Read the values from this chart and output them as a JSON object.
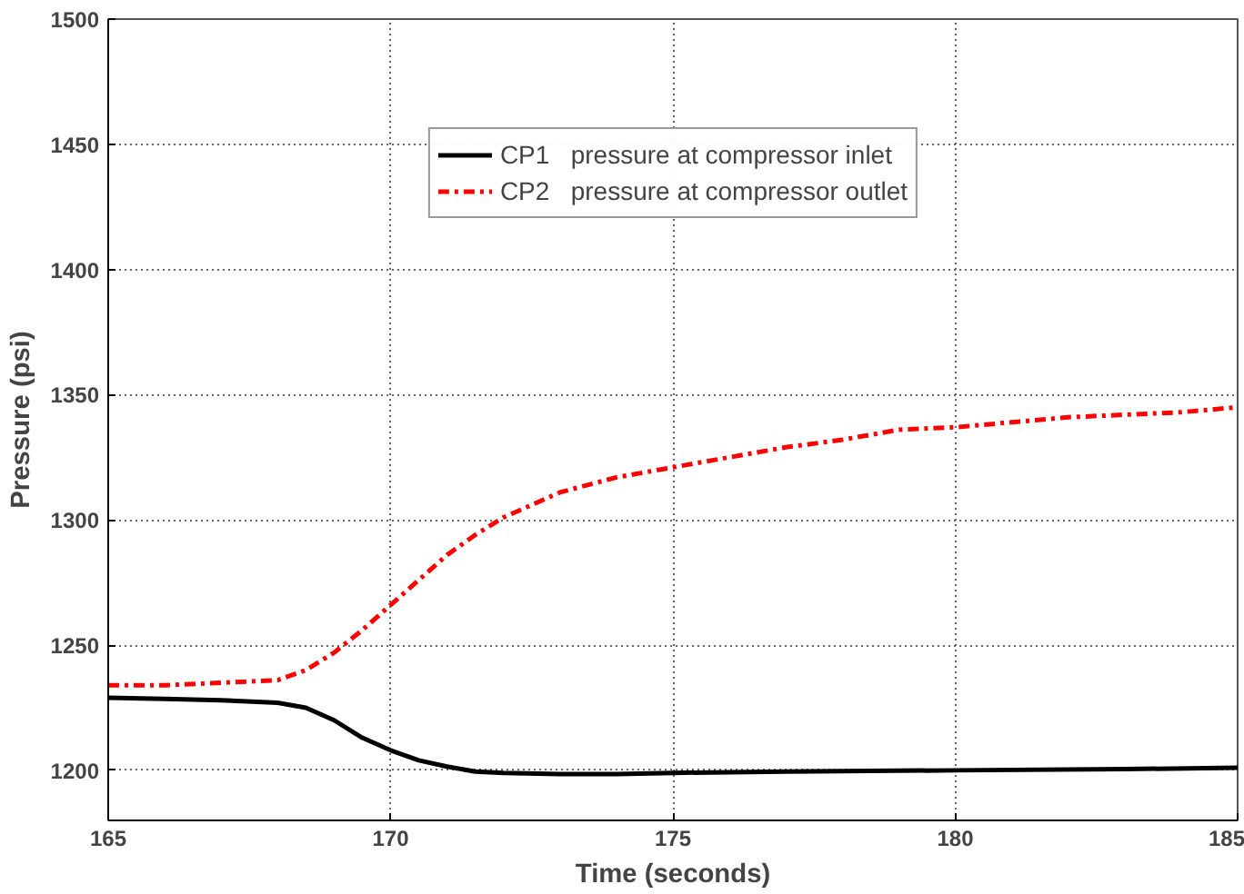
{
  "chart_data": {
    "type": "line",
    "xlabel": "Time (seconds)",
    "ylabel": "Pressure (psi)",
    "xlim": [
      165,
      185
    ],
    "xticks": [
      165,
      170,
      175,
      180,
      185
    ],
    "ylim": [
      1180,
      1500
    ],
    "yticks": [
      1200,
      1250,
      1300,
      1350,
      1400,
      1450,
      1500
    ],
    "grid": true,
    "legend": "top",
    "series": [
      {
        "name": "CP1   pressure at compressor inlet",
        "color": "#000000",
        "line_style": "solid",
        "x": [
          165,
          166,
          167,
          168,
          168.5,
          169,
          169.5,
          170,
          170.5,
          171,
          171.5,
          172,
          173,
          174,
          175,
          177,
          180,
          183,
          185
        ],
        "values": [
          1229,
          1228.5,
          1228,
          1227,
          1225,
          1220,
          1213,
          1208,
          1204,
          1201.5,
          1199.5,
          1199,
          1198.5,
          1198.5,
          1199,
          1199.5,
          1200,
          1200.5,
          1201
        ]
      },
      {
        "name": "CP2   pressure at compressor outlet",
        "color": "#ff0000",
        "line_style": "dashdot",
        "x": [
          165,
          166,
          167,
          168,
          168.5,
          169,
          169.5,
          170,
          170.5,
          171,
          171.5,
          172,
          172.5,
          173,
          174,
          175,
          176,
          177,
          178,
          179,
          180,
          181,
          182,
          183,
          184,
          185
        ],
        "values": [
          1234,
          1234,
          1235,
          1236,
          1240,
          1247,
          1256,
          1266,
          1276,
          1286,
          1294,
          1301,
          1306,
          1311,
          1317,
          1321,
          1325,
          1329,
          1332,
          1336,
          1337,
          1339,
          1341,
          1342,
          1343,
          1345
        ]
      }
    ]
  }
}
